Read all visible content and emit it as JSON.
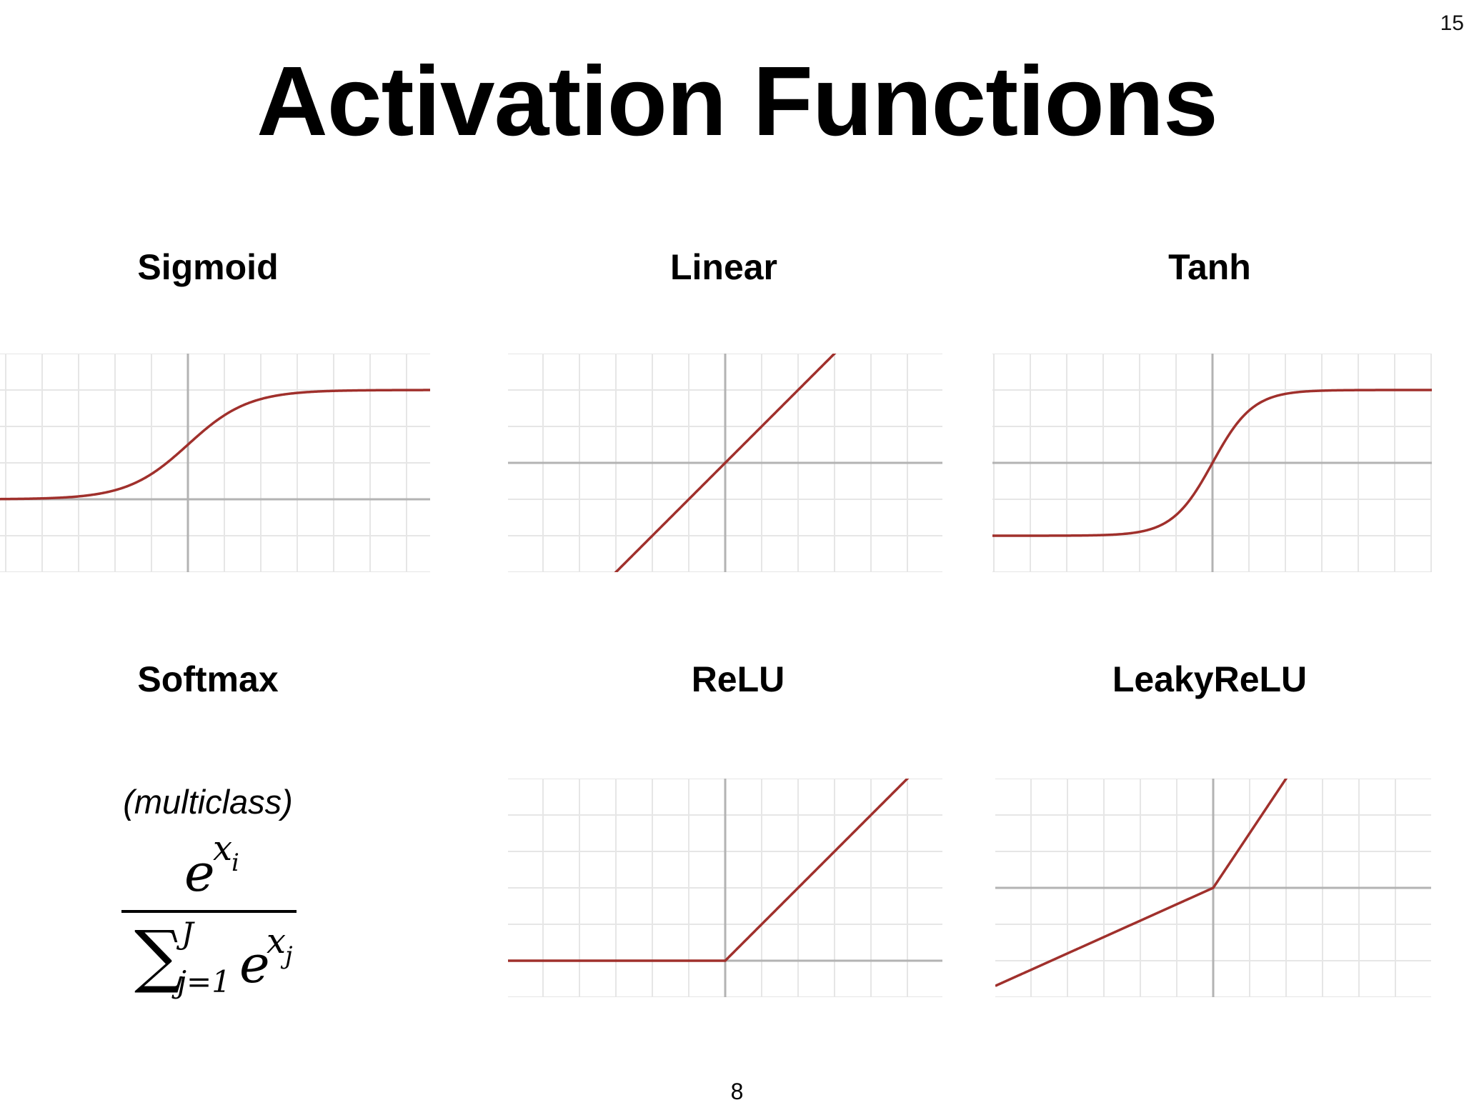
{
  "slide": {
    "slide_number": "15",
    "title": "Activation Functions",
    "page_number": "8"
  },
  "panels": [
    {
      "id": "sigmoid",
      "title": "Sigmoid",
      "function": "sigmoid",
      "curve_color": "#a0302c"
    },
    {
      "id": "linear",
      "title": "Linear",
      "function": "linear",
      "curve_color": "#a0302c"
    },
    {
      "id": "tanh",
      "title": "Tanh",
      "function": "tanh",
      "curve_color": "#a0302c"
    },
    {
      "id": "relu",
      "title": "ReLU",
      "function": "relu",
      "curve_color": "#a0302c"
    },
    {
      "id": "leakyrelu",
      "title": "LeakyReLU",
      "function": "leaky_relu",
      "curve_color": "#a0302c"
    }
  ],
  "softmax": {
    "title": "Softmax",
    "subtitle": "(multiclass)",
    "numerator_base": "e",
    "numerator_exp": "x",
    "numerator_exp_sub": "i",
    "sum_symbol": "∑",
    "sum_upper": "J",
    "sum_lower": "j=1",
    "denominator_base": "e",
    "denominator_exp": "x",
    "denominator_exp_sub": "j"
  },
  "colors": {
    "grid_minor": "#e6e6e6",
    "axis": "#b3b3b3",
    "curve": "#a0302c"
  }
}
